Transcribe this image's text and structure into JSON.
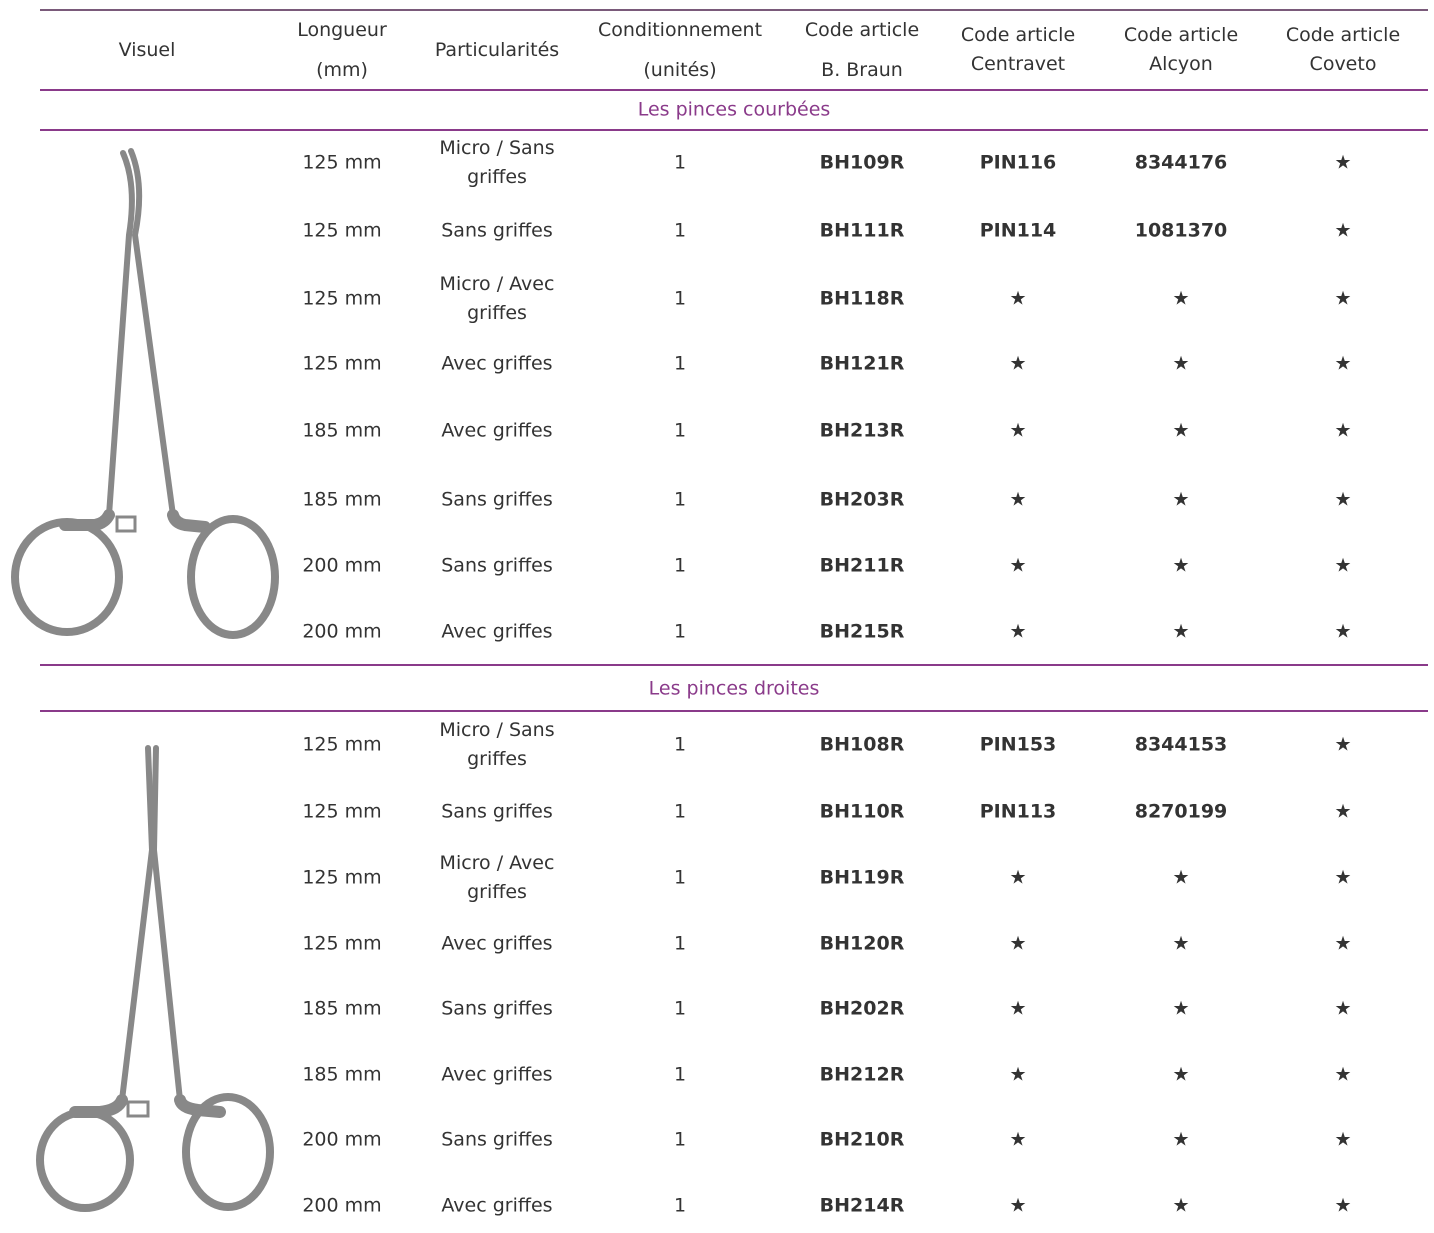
{
  "table": {
    "headers": [
      [
        "Visuel"
      ],
      [
        "Longueur",
        "(mm)"
      ],
      [
        "Particularités"
      ],
      [
        "Conditionnement",
        "(unités)"
      ],
      [
        "Code article",
        "B. Braun"
      ],
      [
        "Code article",
        "Centravet"
      ],
      [
        "Code article",
        "Alcyon"
      ],
      [
        "Code article",
        "Coveto"
      ]
    ],
    "sections": [
      {
        "title": "Les pinces courbées",
        "rows": [
          [
            "125 mm",
            "Micro / Sans griffes",
            1,
            "BH109R",
            "PIN116",
            "8344176",
            "★"
          ],
          [
            "125 mm",
            "Sans griffes",
            1,
            "BH111R",
            "PIN114",
            "1081370",
            "★"
          ],
          [
            "125 mm",
            "Micro / Avec griffes",
            1,
            "BH118R",
            "★",
            "★",
            "★"
          ],
          [
            "125 mm",
            "Avec griffes",
            1,
            "BH121R",
            "★",
            "★",
            "★"
          ],
          [
            "185 mm",
            "Avec griffes",
            1,
            "BH213R",
            "★",
            "★",
            "★"
          ],
          [
            "185 mm",
            "Sans griffes",
            1,
            "BH203R",
            "★",
            "★",
            "★"
          ],
          [
            "200 mm",
            "Sans griffes",
            1,
            "BH211R",
            "★",
            "★",
            "★"
          ],
          [
            "200 mm",
            "Avec griffes",
            1,
            "BH215R",
            "★",
            "★",
            "★"
          ]
        ]
      },
      {
        "title": "Les pinces droites",
        "rows": [
          [
            "125 mm",
            "Micro / Sans griffes",
            1,
            "BH108R",
            "PIN153",
            "8344153",
            "★"
          ],
          [
            "125 mm",
            "Sans griffes",
            1,
            "BH110R",
            "PIN113",
            "8270199",
            "★"
          ],
          [
            "125 mm",
            "Micro / Avec griffes",
            1,
            "BH119R",
            "★",
            "★",
            "★"
          ],
          [
            "125 mm",
            "Avec griffes",
            1,
            "BH120R",
            "★",
            "★",
            "★"
          ],
          [
            "185 mm",
            "Sans griffes",
            1,
            "BH202R",
            "★",
            "★",
            "★"
          ],
          [
            "185 mm",
            "Avec griffes",
            1,
            "BH212R",
            "★",
            "★",
            "★"
          ],
          [
            "200 mm",
            "Sans griffes",
            1,
            "BH210R",
            "★",
            "★",
            "★"
          ],
          [
            "200 mm",
            "Avec griffes",
            1,
            "BH214R",
            "★",
            "★",
            "★"
          ]
        ]
      }
    ]
  }
}
